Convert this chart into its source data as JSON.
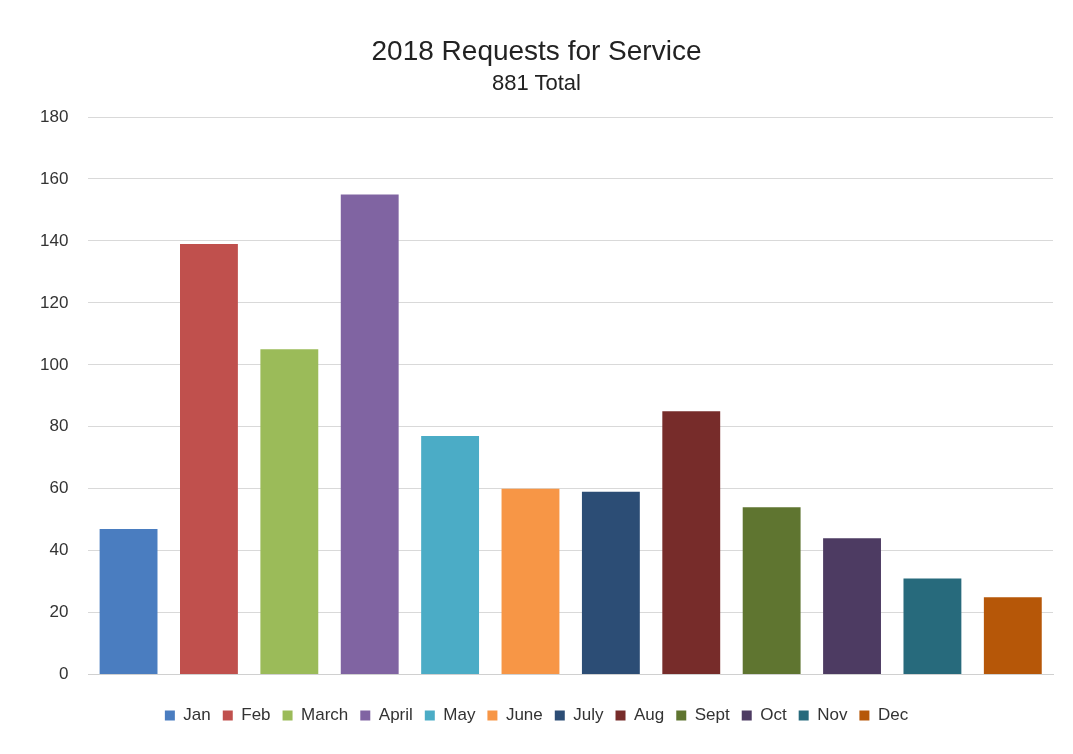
{
  "chart_data": {
    "type": "bar",
    "title": "2018 Requests for Service",
    "subtitle": "881 Total",
    "categories": [
      null,
      null,
      null,
      null,
      null,
      null,
      null,
      null,
      null,
      null,
      null,
      null
    ],
    "series": [
      {
        "name": "Jan",
        "color": "#4a7dc0",
        "values": [
          47,
          null,
          null,
          null,
          null,
          null,
          null,
          null,
          null,
          null,
          null,
          null
        ]
      },
      {
        "name": "Feb",
        "color": "#c0504d",
        "values": [
          null,
          139,
          null,
          null,
          null,
          null,
          null,
          null,
          null,
          null,
          null,
          null
        ]
      },
      {
        "name": "March",
        "color": "#9bbb59",
        "values": [
          null,
          null,
          105,
          null,
          null,
          null,
          null,
          null,
          null,
          null,
          null,
          null
        ]
      },
      {
        "name": "April",
        "color": "#8064a2",
        "values": [
          null,
          null,
          null,
          155,
          null,
          null,
          null,
          null,
          null,
          null,
          null,
          null
        ]
      },
      {
        "name": "May",
        "color": "#4bacc6",
        "values": [
          null,
          null,
          null,
          null,
          77,
          null,
          null,
          null,
          null,
          null,
          null,
          null
        ]
      },
      {
        "name": "June",
        "color": "#f79646",
        "values": [
          null,
          null,
          null,
          null,
          null,
          60,
          null,
          null,
          null,
          null,
          null,
          null
        ]
      },
      {
        "name": "July",
        "color": "#2c4d75",
        "values": [
          null,
          null,
          null,
          null,
          null,
          null,
          59,
          null,
          null,
          null,
          null,
          null
        ]
      },
      {
        "name": "Aug",
        "color": "#772c2a",
        "values": [
          null,
          null,
          null,
          null,
          null,
          null,
          null,
          85,
          null,
          null,
          null,
          null
        ]
      },
      {
        "name": "Sept",
        "color": "#5f7530",
        "values": [
          null,
          null,
          null,
          null,
          null,
          null,
          null,
          null,
          54,
          null,
          null,
          null
        ]
      },
      {
        "name": "Oct",
        "color": "#4d3b62",
        "values": [
          null,
          null,
          null,
          null,
          null,
          null,
          null,
          null,
          null,
          44,
          null,
          null
        ]
      },
      {
        "name": "Nov",
        "color": "#276a7c",
        "values": [
          null,
          null,
          null,
          null,
          null,
          null,
          null,
          null,
          null,
          null,
          31,
          null
        ]
      },
      {
        "name": "Dec",
        "color": "#b65708",
        "values": [
          null,
          null,
          null,
          null,
          null,
          null,
          null,
          null,
          null,
          null,
          null,
          25
        ]
      }
    ],
    "ylim": [
      0,
      180
    ],
    "yticks": [
      0,
      20,
      40,
      60,
      80,
      100,
      120,
      140,
      160,
      180
    ],
    "grid": "y",
    "legend": "bottom"
  }
}
